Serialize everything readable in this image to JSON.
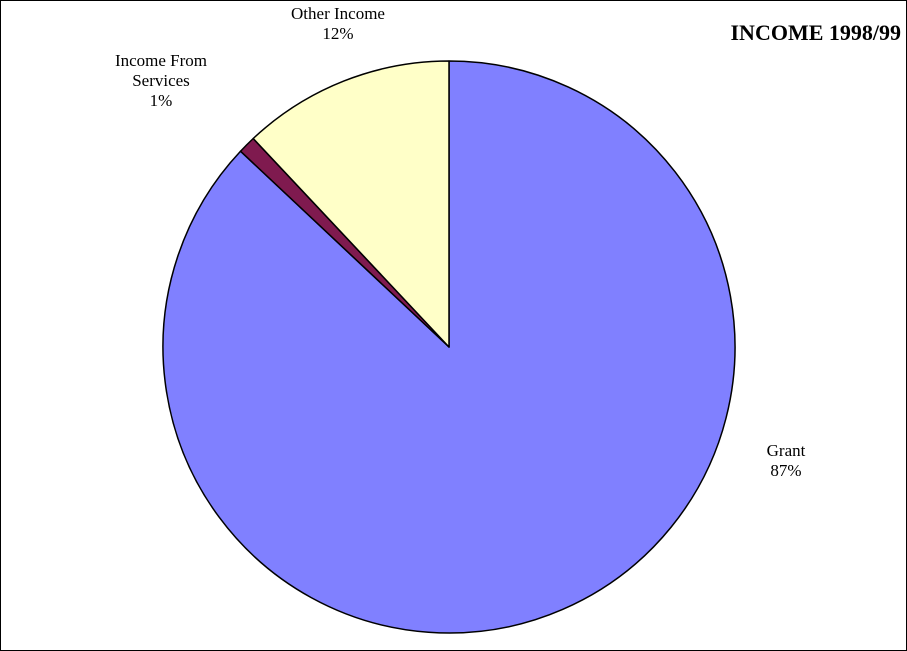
{
  "chart_data": {
    "type": "pie",
    "title": "INCOME 1998/99",
    "slices": [
      {
        "label": "Grant",
        "label_lines": [
          "Grant"
        ],
        "pct_label": "87%",
        "value": 87,
        "color": "#8080ff",
        "label_side": "right"
      },
      {
        "label": "Income From Services",
        "label_lines": [
          "Income From",
          "Services"
        ],
        "pct_label": "1%",
        "value": 1,
        "color": "#7f1a4f",
        "label_side": "upper-left"
      },
      {
        "label": "Other Income",
        "label_lines": [
          "Other Income"
        ],
        "pct_label": "12%",
        "value": 12,
        "color": "#ffffc8",
        "label_side": "top"
      }
    ],
    "start_angle_deg": 0,
    "direction": "clockwise",
    "legend": "none"
  }
}
